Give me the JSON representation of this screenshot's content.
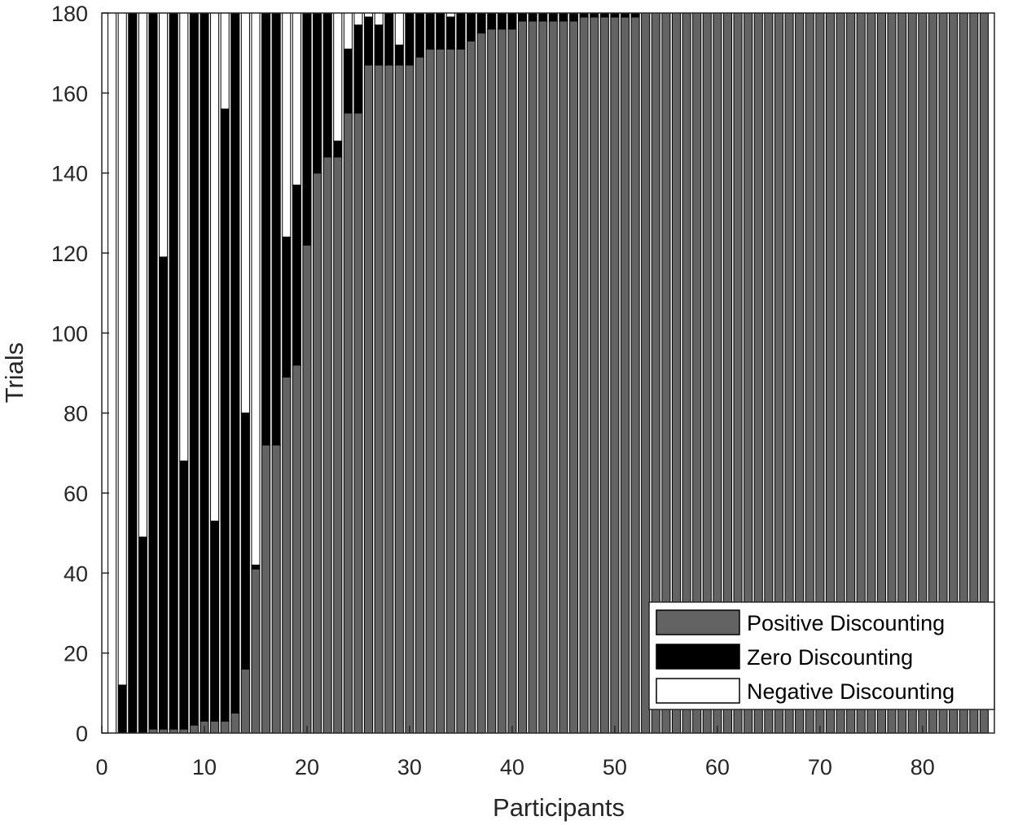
{
  "chart_data": {
    "type": "bar",
    "stacked": true,
    "xlabel": "Participants",
    "ylabel": "Trials",
    "xlim": [
      0,
      87
    ],
    "ylim": [
      0,
      180
    ],
    "xticks": [
      0,
      10,
      20,
      30,
      40,
      50,
      60,
      70,
      80
    ],
    "yticks": [
      0,
      20,
      40,
      60,
      80,
      100,
      120,
      140,
      160,
      180
    ],
    "grid": false,
    "legend_position": "bottom-right",
    "colors": {
      "positive": "#636363",
      "zero": "#000000",
      "negative": "#ffffff",
      "axis": "#262626"
    },
    "x": [
      1,
      2,
      3,
      4,
      5,
      6,
      7,
      8,
      9,
      10,
      11,
      12,
      13,
      14,
      15,
      16,
      17,
      18,
      19,
      20,
      21,
      22,
      23,
      24,
      25,
      26,
      27,
      28,
      29,
      30,
      31,
      32,
      33,
      34,
      35,
      36,
      37,
      38,
      39,
      40,
      41,
      42,
      43,
      44,
      45,
      46,
      47,
      48,
      49,
      50,
      51,
      52,
      53,
      54,
      55,
      56,
      57,
      58,
      59,
      60,
      61,
      62,
      63,
      64,
      65,
      66,
      67,
      68,
      69,
      70,
      71,
      72,
      73,
      74,
      75,
      76,
      77,
      78,
      79,
      80,
      81,
      82,
      83,
      84,
      85,
      86
    ],
    "series": [
      {
        "name": "Positive Discounting",
        "color": "#636363",
        "values": [
          0,
          0,
          0,
          0,
          1,
          1,
          1,
          1,
          2,
          3,
          3,
          3,
          5,
          16,
          41,
          72,
          72,
          89,
          92,
          122,
          140,
          144,
          144,
          155,
          155,
          167,
          167,
          167,
          167,
          167,
          169,
          171,
          171,
          171,
          171,
          173,
          175,
          176,
          176,
          176,
          178,
          178,
          178,
          178,
          178,
          178,
          179,
          179,
          179,
          179,
          179,
          179,
          180,
          180,
          180,
          180,
          180,
          180,
          180,
          180,
          180,
          180,
          180,
          180,
          180,
          180,
          180,
          180,
          180,
          180,
          180,
          180,
          180,
          180,
          180,
          180,
          180,
          180,
          180,
          180,
          180,
          180,
          180,
          180,
          180,
          180
        ]
      },
      {
        "name": "Zero Discounting",
        "color": "#000000",
        "values": [
          0,
          12,
          180,
          49,
          179,
          118,
          179,
          67,
          178,
          177,
          50,
          153,
          175,
          64,
          1,
          108,
          108,
          35,
          45,
          58,
          40,
          36,
          4,
          16,
          22,
          12,
          10,
          13,
          5,
          13,
          11,
          9,
          9,
          8,
          9,
          7,
          5,
          4,
          4,
          4,
          2,
          2,
          2,
          2,
          2,
          2,
          1,
          1,
          1,
          1,
          1,
          1,
          0,
          0,
          0,
          0,
          0,
          0,
          0,
          0,
          0,
          0,
          0,
          0,
          0,
          0,
          0,
          0,
          0,
          0,
          0,
          0,
          0,
          0,
          0,
          0,
          0,
          0,
          0,
          0,
          0,
          0,
          0,
          0,
          0,
          0
        ]
      },
      {
        "name": "Negative Discounting",
        "color": "#ffffff",
        "values": [
          180,
          168,
          0,
          131,
          0,
          61,
          0,
          112,
          0,
          0,
          127,
          24,
          0,
          100,
          138,
          0,
          0,
          56,
          43,
          0,
          0,
          0,
          32,
          9,
          3,
          1,
          3,
          0,
          8,
          0,
          0,
          0,
          0,
          1,
          0,
          0,
          0,
          0,
          0,
          0,
          0,
          0,
          0,
          0,
          0,
          0,
          0,
          0,
          0,
          0,
          0,
          0,
          0,
          0,
          0,
          0,
          0,
          0,
          0,
          0,
          0,
          0,
          0,
          0,
          0,
          0,
          0,
          0,
          0,
          0,
          0,
          0,
          0,
          0,
          0,
          0,
          0,
          0,
          0,
          0,
          0,
          0,
          0,
          0,
          0,
          0
        ]
      }
    ]
  }
}
